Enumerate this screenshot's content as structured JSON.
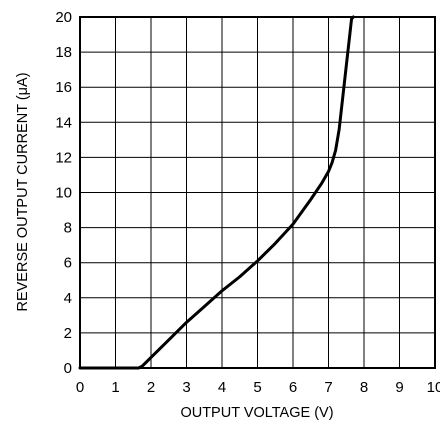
{
  "chart_data": {
    "type": "line",
    "title": "",
    "xlabel": "OUTPUT VOLTAGE (V)",
    "ylabel": "REVERSE OUTPUT CURRENT (μA)",
    "xlim": [
      0,
      10
    ],
    "ylim": [
      0,
      20
    ],
    "x_ticks": [
      "0",
      "1",
      "2",
      "3",
      "4",
      "5",
      "6",
      "7",
      "8",
      "9",
      "10"
    ],
    "y_ticks": [
      "0",
      "2",
      "4",
      "6",
      "8",
      "10",
      "12",
      "14",
      "16",
      "18",
      "20"
    ],
    "grid": true,
    "legend": "none",
    "line_color": "#000000",
    "series": [
      {
        "x": [
          0,
          0.5,
          1.0,
          1.5,
          1.65,
          1.75,
          2.0,
          2.5,
          3.0,
          3.5,
          4.0,
          4.5,
          5.0,
          5.5,
          6.0,
          6.5,
          6.8,
          7.0,
          7.1,
          7.2,
          7.3,
          7.35,
          7.4,
          7.45,
          7.5,
          7.55,
          7.6,
          7.65,
          7.7
        ],
        "y": [
          0,
          0,
          0,
          0,
          0,
          0.1,
          0.6,
          1.6,
          2.6,
          3.5,
          4.4,
          5.2,
          6.1,
          7.1,
          8.2,
          9.6,
          10.5,
          11.2,
          11.7,
          12.4,
          13.6,
          14.5,
          15.4,
          16.3,
          17.2,
          18.1,
          19.0,
          19.9,
          20.0
        ]
      }
    ]
  }
}
